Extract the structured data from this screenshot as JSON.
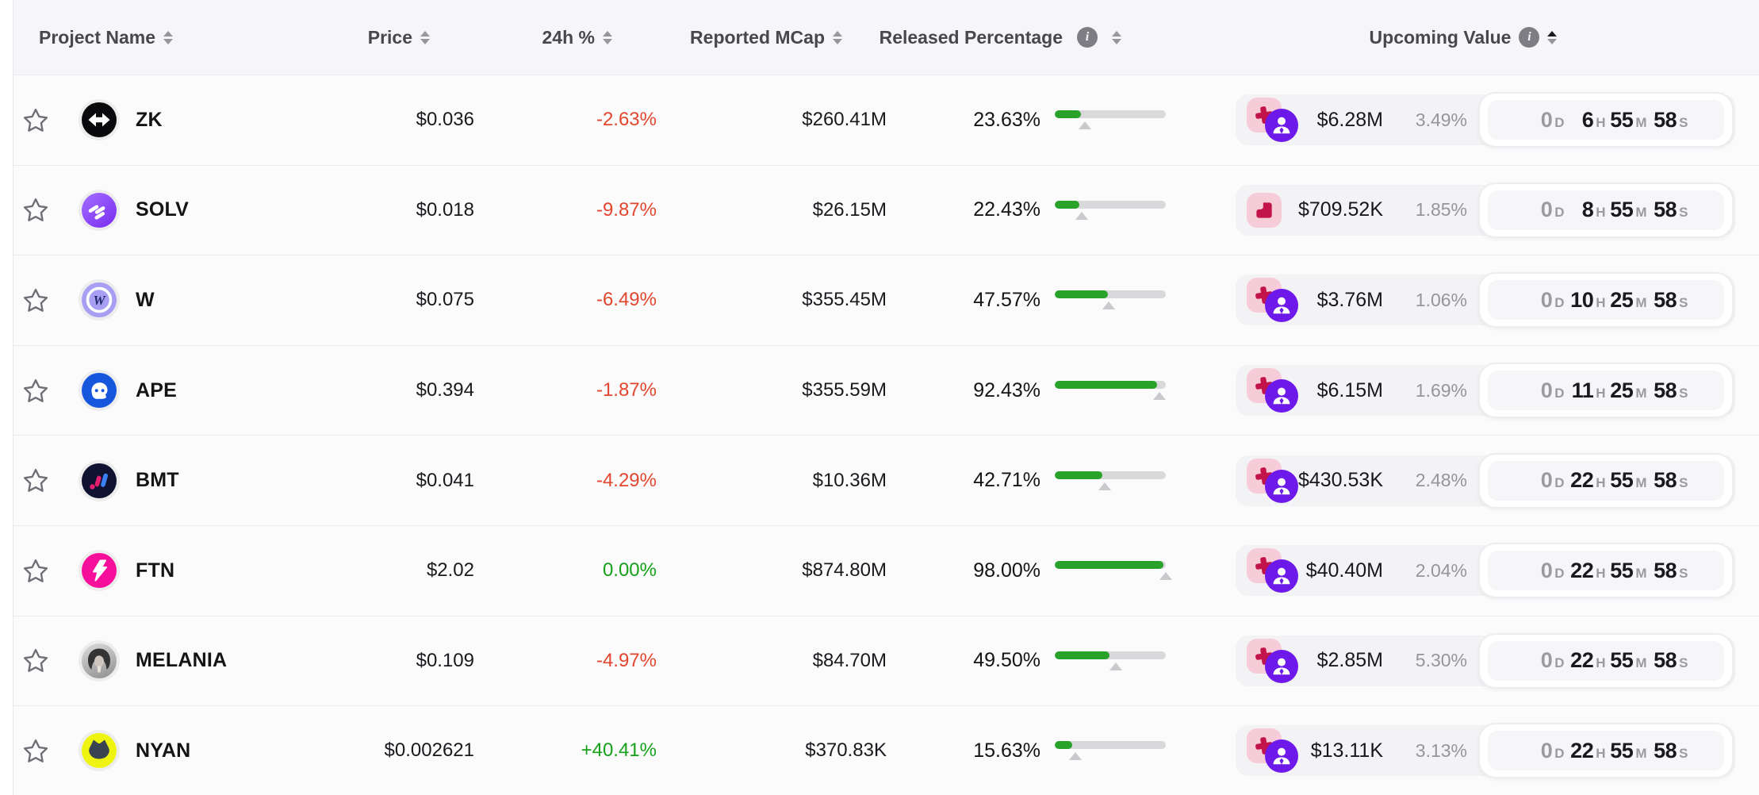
{
  "header": {
    "columns": [
      {
        "key": "name",
        "label": "Project Name",
        "info": false,
        "sort": "none"
      },
      {
        "key": "price",
        "label": "Price",
        "info": false,
        "sort": "none"
      },
      {
        "key": "change",
        "label": "24h %",
        "info": false,
        "sort": "none"
      },
      {
        "key": "mcap",
        "label": "Reported MCap",
        "info": false,
        "sort": "none"
      },
      {
        "key": "released",
        "label": "Released Percentage",
        "info": true,
        "sort": "none"
      },
      {
        "key": "upcoming",
        "label": "Upcoming Value",
        "info": true,
        "sort": "asc"
      }
    ]
  },
  "rows": [
    {
      "symbol": "ZK",
      "icon": "zk",
      "price": "$0.036",
      "change": "-2.63%",
      "change_color": "negative",
      "mcap": "$260.41M",
      "released_label": "23.63%",
      "released_pct": 23.63,
      "upcoming_pct_num": 3.49,
      "unlock_value": "$6.28M",
      "unlock_pct": "3.49%",
      "badge_glyph": "plus",
      "badge_person": true,
      "countdown": [
        [
          "0",
          "D"
        ],
        [
          "6",
          "H"
        ],
        [
          "55",
          "M"
        ],
        [
          "58",
          "S"
        ]
      ]
    },
    {
      "symbol": "SOLV",
      "icon": "solv",
      "price": "$0.018",
      "change": "-9.87%",
      "change_color": "negative",
      "mcap": "$26.15M",
      "released_label": "22.43%",
      "released_pct": 22.43,
      "upcoming_pct_num": 1.85,
      "unlock_value": "$709.52K",
      "unlock_pct": "1.85%",
      "badge_glyph": "cliff",
      "badge_person": false,
      "countdown": [
        [
          "0",
          "D"
        ],
        [
          "8",
          "H"
        ],
        [
          "55",
          "M"
        ],
        [
          "58",
          "S"
        ]
      ]
    },
    {
      "symbol": "W",
      "icon": "w",
      "price": "$0.075",
      "change": "-6.49%",
      "change_color": "negative",
      "mcap": "$355.45M",
      "released_label": "47.57%",
      "released_pct": 47.57,
      "upcoming_pct_num": 1.06,
      "unlock_value": "$3.76M",
      "unlock_pct": "1.06%",
      "badge_glyph": "plus",
      "badge_person": true,
      "countdown": [
        [
          "0",
          "D"
        ],
        [
          "10",
          "H"
        ],
        [
          "25",
          "M"
        ],
        [
          "58",
          "S"
        ]
      ]
    },
    {
      "symbol": "APE",
      "icon": "ape",
      "price": "$0.394",
      "change": "-1.87%",
      "change_color": "negative",
      "mcap": "$355.59M",
      "released_label": "92.43%",
      "released_pct": 92.43,
      "upcoming_pct_num": 1.69,
      "unlock_value": "$6.15M",
      "unlock_pct": "1.69%",
      "badge_glyph": "plus",
      "badge_person": true,
      "countdown": [
        [
          "0",
          "D"
        ],
        [
          "11",
          "H"
        ],
        [
          "25",
          "M"
        ],
        [
          "58",
          "S"
        ]
      ]
    },
    {
      "symbol": "BMT",
      "icon": "bmt",
      "price": "$0.041",
      "change": "-4.29%",
      "change_color": "negative",
      "mcap": "$10.36M",
      "released_label": "42.71%",
      "released_pct": 42.71,
      "upcoming_pct_num": 2.48,
      "unlock_value": "$430.53K",
      "unlock_pct": "2.48%",
      "badge_glyph": "plus",
      "badge_person": true,
      "countdown": [
        [
          "0",
          "D"
        ],
        [
          "22",
          "H"
        ],
        [
          "55",
          "M"
        ],
        [
          "58",
          "S"
        ]
      ]
    },
    {
      "symbol": "FTN",
      "icon": "ftn",
      "price": "$2.02",
      "change": "0.00%",
      "change_color": "positive",
      "mcap": "$874.80M",
      "released_label": "98.00%",
      "released_pct": 98.0,
      "upcoming_pct_num": 2.04,
      "unlock_value": "$40.40M",
      "unlock_pct": "2.04%",
      "badge_glyph": "plus",
      "badge_person": true,
      "countdown": [
        [
          "0",
          "D"
        ],
        [
          "22",
          "H"
        ],
        [
          "55",
          "M"
        ],
        [
          "58",
          "S"
        ]
      ]
    },
    {
      "symbol": "MELANIA",
      "icon": "melania",
      "price": "$0.109",
      "change": "-4.97%",
      "change_color": "negative",
      "mcap": "$84.70M",
      "released_label": "49.50%",
      "released_pct": 49.5,
      "upcoming_pct_num": 5.3,
      "unlock_value": "$2.85M",
      "unlock_pct": "5.30%",
      "badge_glyph": "plus",
      "badge_person": true,
      "countdown": [
        [
          "0",
          "D"
        ],
        [
          "22",
          "H"
        ],
        [
          "55",
          "M"
        ],
        [
          "58",
          "S"
        ]
      ]
    },
    {
      "symbol": "NYAN",
      "icon": "nyan",
      "price": "$0.002621",
      "change": "+40.41%",
      "change_color": "positive",
      "mcap": "$370.83K",
      "released_label": "15.63%",
      "released_pct": 15.63,
      "upcoming_pct_num": 3.13,
      "unlock_value": "$13.11K",
      "unlock_pct": "3.13%",
      "badge_glyph": "plus",
      "badge_person": true,
      "countdown": [
        [
          "0",
          "D"
        ],
        [
          "22",
          "H"
        ],
        [
          "55",
          "M"
        ],
        [
          "58",
          "S"
        ]
      ]
    }
  ],
  "colors": {
    "negative": "#e2462e",
    "positive": "#16a11a",
    "bar_fill": "#28a228",
    "bar_track": "#d9d9dc",
    "badge_pink_bg": "#f6ccd9",
    "badge_glyph": "#c3134c",
    "badge_person_bg": "#6d19ea",
    "header_bg": "#f6f6f8",
    "row_bg": "#fbfbfc",
    "panel_bg": "#f3f3f5"
  }
}
